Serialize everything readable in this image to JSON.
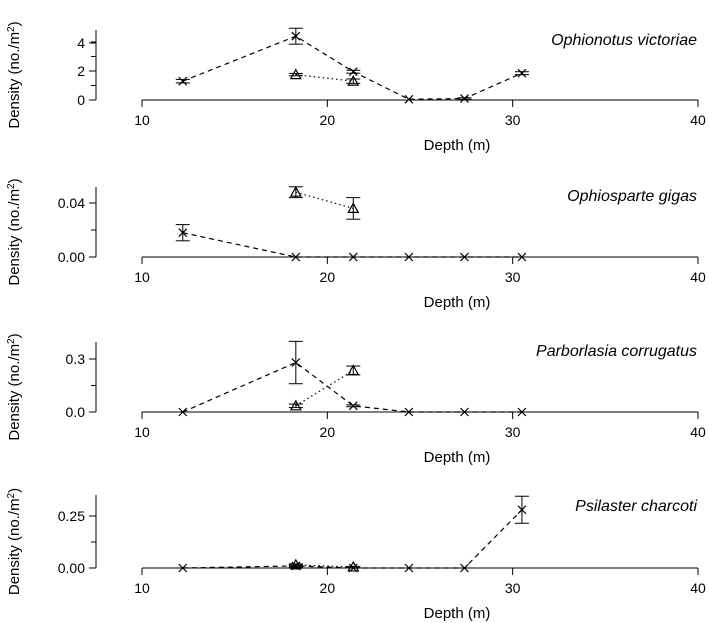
{
  "chart_data": [
    {
      "type": "scatter",
      "title": "Ophionotus victoriae",
      "xlabel": "Depth (m)",
      "ylabel": "Density (no./m²)",
      "xlim": [
        10,
        40
      ],
      "xticks": [
        "10",
        "20",
        "30",
        "40"
      ],
      "ylim": [
        0,
        5
      ],
      "yticks": [
        "0",
        "2",
        "4"
      ],
      "series": [
        {
          "marker": "x",
          "line": "dashed",
          "points": [
            {
              "x": 12.2,
              "y": 1.3,
              "err": 0.12
            },
            {
              "x": 18.3,
              "y": 4.4,
              "err": 0.55
            },
            {
              "x": 21.4,
              "y": 1.95,
              "err": 0.1
            },
            {
              "x": 24.4,
              "y": 0.05,
              "err": 0
            },
            {
              "x": 27.4,
              "y": 0.1,
              "err": 0.05
            },
            {
              "x": 30.5,
              "y": 1.85,
              "err": 0.1
            }
          ]
        },
        {
          "marker": "triangle",
          "line": "dotted",
          "points": [
            {
              "x": 18.3,
              "y": 1.75,
              "err": 0.08
            },
            {
              "x": 21.4,
              "y": 1.3,
              "err": 0.15
            }
          ]
        }
      ]
    },
    {
      "type": "scatter",
      "title": "Ophiosparte gigas",
      "xlabel": "Depth (m)",
      "ylabel": "Density (no./m²)",
      "xlim": [
        10,
        40
      ],
      "xticks": [
        "10",
        "20",
        "30",
        "40"
      ],
      "ylim": [
        0,
        0.055
      ],
      "yticks": [
        "0.00",
        "0.04"
      ],
      "series": [
        {
          "marker": "x",
          "line": "dashed",
          "points": [
            {
              "x": 12.2,
              "y": 0.018,
              "err": 0.006
            },
            {
              "x": 18.3,
              "y": 0.0,
              "err": 0
            },
            {
              "x": 21.4,
              "y": 0.0,
              "err": 0
            },
            {
              "x": 24.4,
              "y": 0.0,
              "err": 0
            },
            {
              "x": 27.4,
              "y": 0.0,
              "err": 0
            },
            {
              "x": 30.5,
              "y": 0.0,
              "err": 0
            }
          ]
        },
        {
          "marker": "triangle",
          "line": "dotted",
          "points": [
            {
              "x": 18.3,
              "y": 0.048,
              "err": 0.004
            },
            {
              "x": 21.4,
              "y": 0.036,
              "err": 0.008
            }
          ]
        }
      ]
    },
    {
      "type": "scatter",
      "title": "Parborlasia corrugatus",
      "xlabel": "Depth (m)",
      "ylabel": "Density (no./m²)",
      "xlim": [
        10,
        40
      ],
      "xticks": [
        "10",
        "20",
        "30",
        "40"
      ],
      "ylim": [
        0,
        0.4
      ],
      "yticks": [
        "0.0",
        "0.3"
      ],
      "series": [
        {
          "marker": "x",
          "line": "dashed",
          "points": [
            {
              "x": 12.2,
              "y": 0.0,
              "err": 0
            },
            {
              "x": 18.3,
              "y": 0.28,
              "err": 0.12
            },
            {
              "x": 21.4,
              "y": 0.035,
              "err": 0.005
            },
            {
              "x": 24.4,
              "y": 0.0,
              "err": 0
            },
            {
              "x": 27.4,
              "y": 0.0,
              "err": 0
            },
            {
              "x": 30.5,
              "y": 0.0,
              "err": 0
            }
          ]
        },
        {
          "marker": "triangle",
          "line": "dotted",
          "points": [
            {
              "x": 18.3,
              "y": 0.035,
              "err": 0.01
            },
            {
              "x": 21.4,
              "y": 0.235,
              "err": 0.025
            }
          ]
        }
      ]
    },
    {
      "type": "scatter",
      "title": "Psilaster charcoti",
      "xlabel": "Depth (m)",
      "ylabel": "Density (no./m²)",
      "xlim": [
        10,
        40
      ],
      "xticks": [
        "10",
        "20",
        "30",
        "40"
      ],
      "ylim": [
        0,
        0.35
      ],
      "yticks": [
        "0.00",
        "0.25"
      ],
      "series": [
        {
          "marker": "x",
          "line": "dashed",
          "points": [
            {
              "x": 12.2,
              "y": 0.0,
              "err": 0
            },
            {
              "x": 18.3,
              "y": 0.01,
              "err": 0.005
            },
            {
              "x": 21.4,
              "y": 0.0,
              "err": 0
            },
            {
              "x": 24.4,
              "y": 0.0,
              "err": 0
            },
            {
              "x": 27.4,
              "y": 0.0,
              "err": 0
            },
            {
              "x": 30.5,
              "y": 0.28,
              "err": 0.065
            }
          ]
        },
        {
          "marker": "triangle",
          "line": "dotted",
          "points": [
            {
              "x": 18.3,
              "y": 0.015,
              "err": 0.005
            },
            {
              "x": 21.4,
              "y": 0.005,
              "err": 0.003
            }
          ]
        }
      ]
    }
  ]
}
